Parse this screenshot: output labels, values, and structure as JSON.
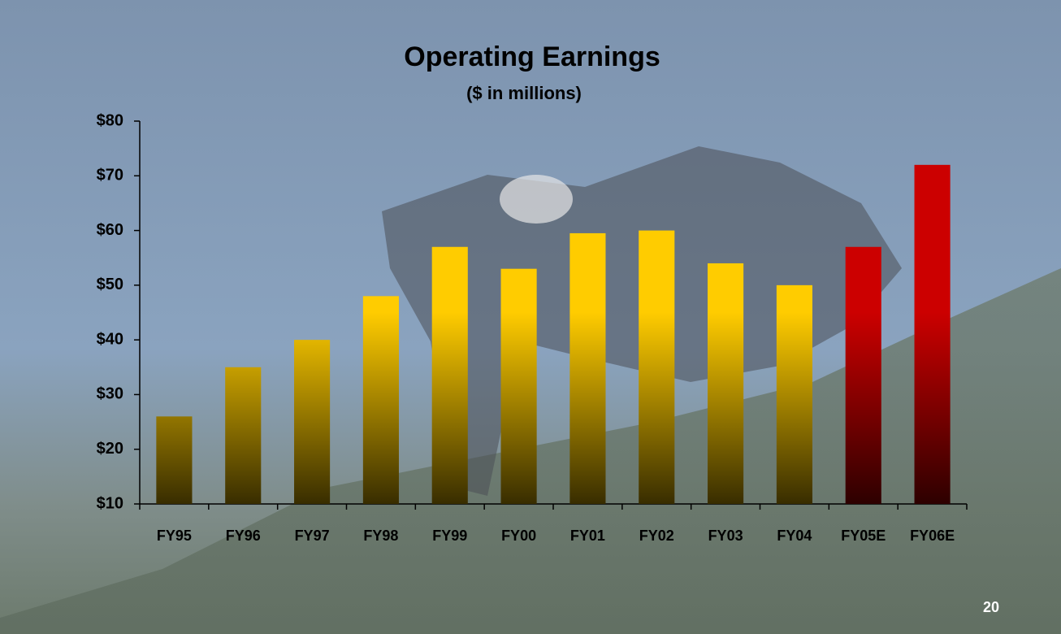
{
  "chart_data": {
    "type": "bar",
    "title": "Operating Earnings",
    "subtitle": "($ in millions)",
    "categories": [
      "FY95",
      "FY96",
      "FY97",
      "FY98",
      "FY99",
      "FY00",
      "FY01",
      "FY02",
      "FY03",
      "FY04",
      "FY05E",
      "FY06E"
    ],
    "values": [
      26,
      35,
      40,
      48,
      57,
      53,
      59.5,
      60,
      54,
      50,
      57,
      72
    ],
    "colors": [
      "#ffcc00",
      "#ffcc00",
      "#ffcc00",
      "#ffcc00",
      "#ffcc00",
      "#ffcc00",
      "#ffcc00",
      "#ffcc00",
      "#ffcc00",
      "#ffcc00",
      "#cc0000",
      "#cc0000"
    ],
    "ylim": [
      10,
      80
    ],
    "yticks": [
      {
        "value": 10,
        "label": "$10"
      },
      {
        "value": 20,
        "label": "$20"
      },
      {
        "value": 30,
        "label": "$30"
      },
      {
        "value": 40,
        "label": "$40"
      },
      {
        "value": 50,
        "label": "$50"
      },
      {
        "value": 60,
        "label": "$60"
      },
      {
        "value": 70,
        "label": "$70"
      },
      {
        "value": 80,
        "label": "$80"
      }
    ],
    "grid": false,
    "page_number": "20"
  }
}
